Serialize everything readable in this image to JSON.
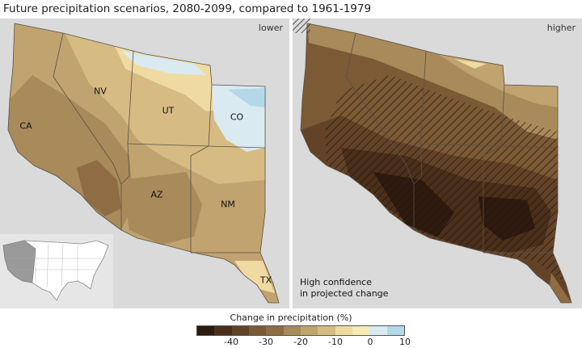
{
  "title": "Future precipitation scenarios, 2080-2099, compared to 1961-1979",
  "panels": {
    "left_label": "lower",
    "right_label": "higher"
  },
  "states": [
    "NV",
    "CA",
    "UT",
    "CO",
    "AZ",
    "NM",
    "TX"
  ],
  "legend": {
    "hatch_line1": "High confidence",
    "hatch_line2": "in projected change"
  },
  "colorbar": {
    "title": "Change in precipitation (%)",
    "colors": [
      "#2e1a0e",
      "#4a2f1b",
      "#634327",
      "#7b5a35",
      "#8f6c44",
      "#a88a5b",
      "#c0a36e",
      "#d6bb82",
      "#efdba1",
      "#f7ebb6",
      "#d9eaf1",
      "#b4d8e8"
    ],
    "ticks": [
      "-40",
      "-30",
      "-20",
      "-10",
      "0",
      "10"
    ]
  }
}
